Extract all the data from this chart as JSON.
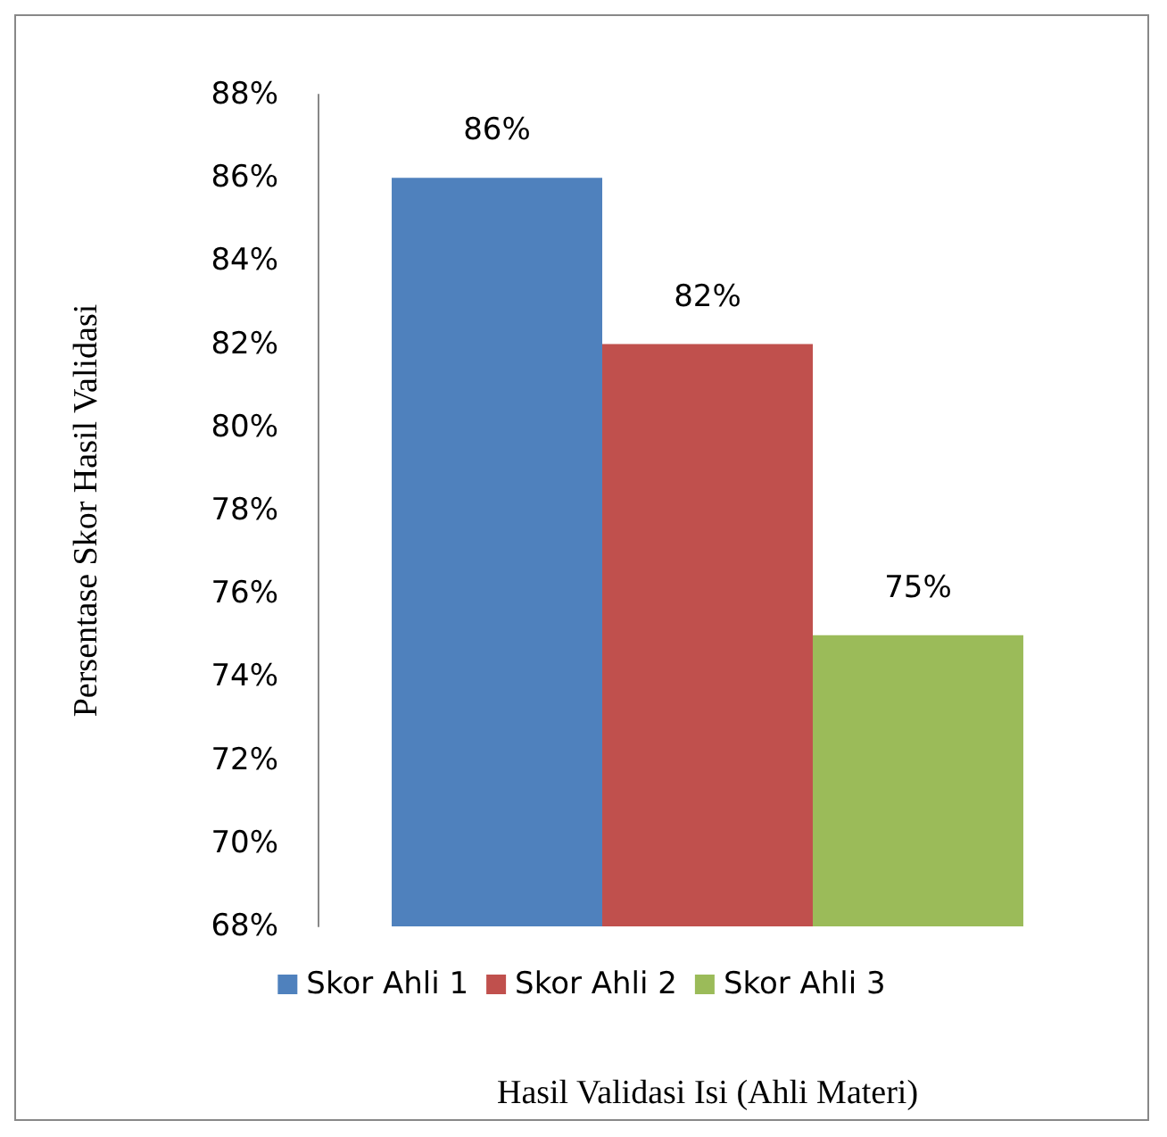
{
  "chart_data": {
    "type": "bar",
    "xlabel": "Hasil Validasi Isi (Ahli Materi)",
    "ylabel": "Persentase Skor Hasil Validasi",
    "categories": [
      null
    ],
    "series": [
      {
        "name": "Skor Ahli 1",
        "color": "#4f81bd",
        "values": [
          86
        ],
        "value_labels": [
          "86%"
        ]
      },
      {
        "name": "Skor Ahli 2",
        "color": "#c0504d",
        "values": [
          82
        ],
        "value_labels": [
          "82%"
        ]
      },
      {
        "name": "Skor Ahli 3",
        "color": "#9bbb59",
        "values": [
          75
        ],
        "value_labels": [
          "75%"
        ]
      }
    ],
    "ylim": [
      68,
      88
    ],
    "yticks": [
      {
        "value": 68,
        "label": "68%"
      },
      {
        "value": 70,
        "label": "70%"
      },
      {
        "value": 72,
        "label": "72%"
      },
      {
        "value": 74,
        "label": "74%"
      },
      {
        "value": 76,
        "label": "76%"
      },
      {
        "value": 78,
        "label": "78%"
      },
      {
        "value": 80,
        "label": "80%"
      },
      {
        "value": 82,
        "label": "82%"
      },
      {
        "value": 84,
        "label": "84%"
      },
      {
        "value": 86,
        "label": "86%"
      },
      {
        "value": 88,
        "label": "88%"
      }
    ],
    "grid": false,
    "legend": "bottom"
  }
}
